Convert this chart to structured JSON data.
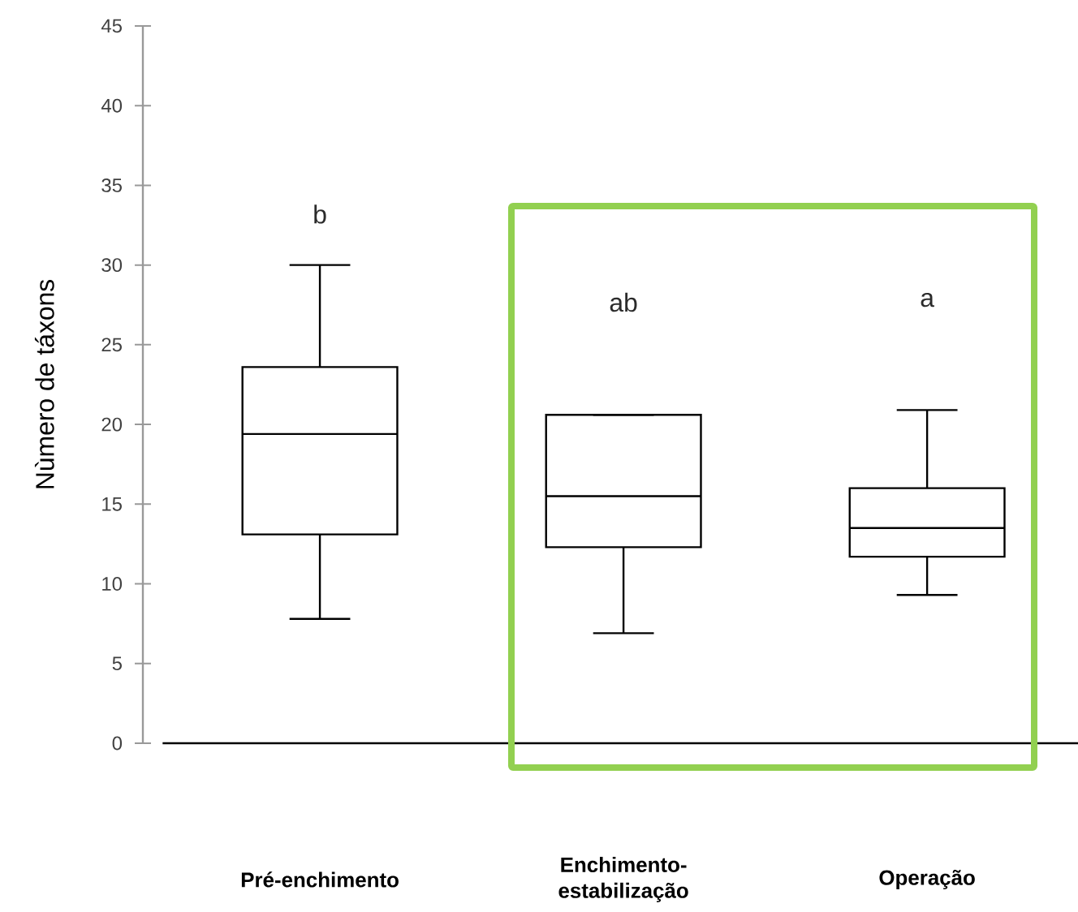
{
  "chart_data": {
    "type": "box",
    "ylabel": "Nùmero de táxons",
    "categories": [
      "Pré-enchimento",
      "Enchimento-estabilização",
      "Operação"
    ],
    "boxes": [
      {
        "low": 7.8,
        "q1": 13.1,
        "median": 19.4,
        "q3": 23.6,
        "high": 30.0
      },
      {
        "low": 6.9,
        "q1": 12.3,
        "median": 15.5,
        "q3": 20.6,
        "high": 20.6
      },
      {
        "low": 9.3,
        "q1": 11.7,
        "median": 13.5,
        "q3": 16.0,
        "high": 20.9
      }
    ],
    "color": "#000000",
    "ylim": [
      0,
      45
    ],
    "yticks": [
      0,
      5,
      10,
      15,
      20,
      25,
      30,
      35,
      40,
      45
    ],
    "annotations": [
      "b",
      "ab",
      "a"
    ]
  }
}
